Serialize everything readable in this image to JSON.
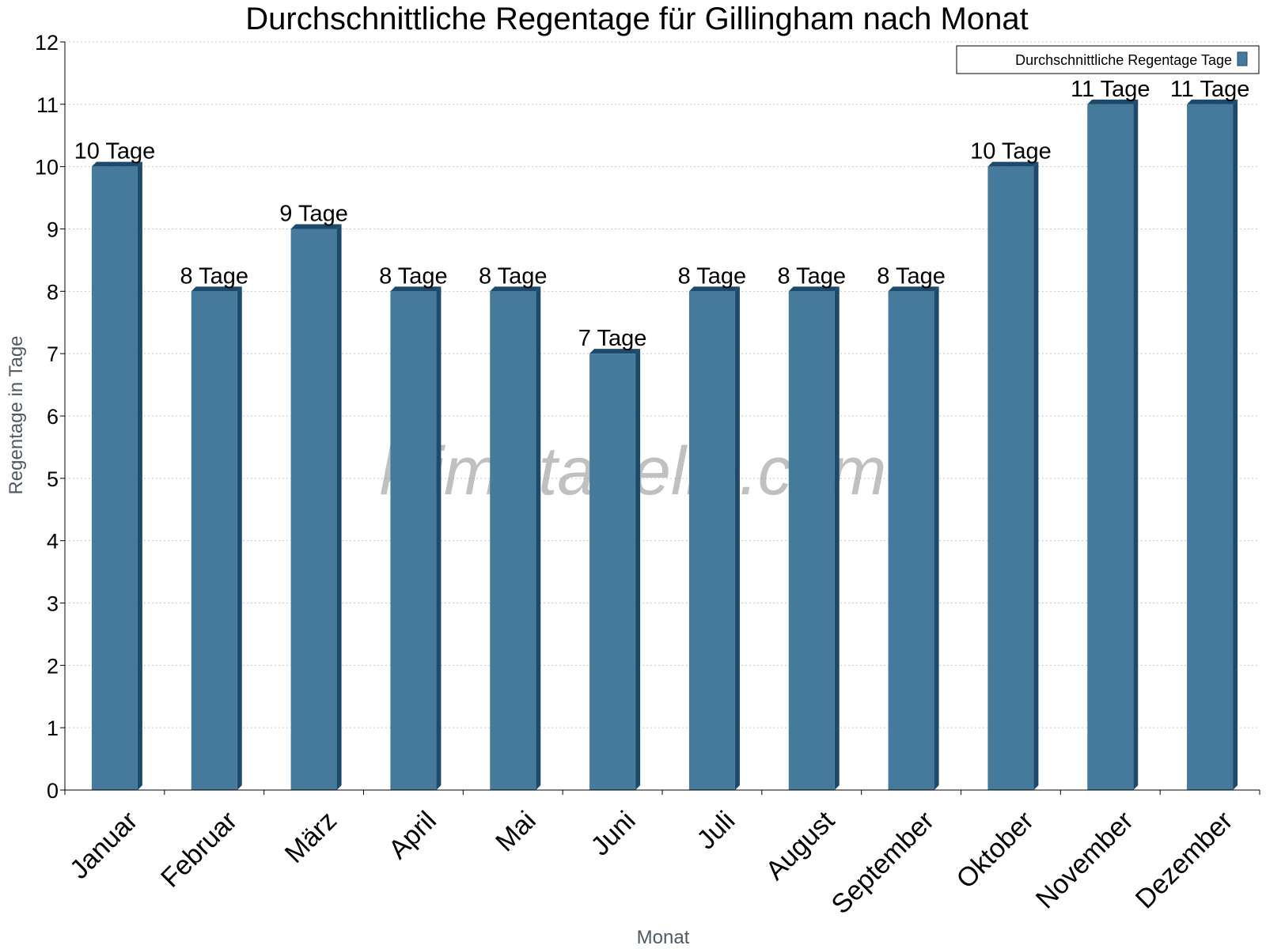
{
  "chart_data": {
    "type": "bar",
    "title": "Durchschnittliche Regentage für Gillingham nach Monat",
    "xlabel": "Monat",
    "ylabel": "Regentage in Tage",
    "ylim": [
      0,
      12
    ],
    "yticks": [
      0,
      1,
      2,
      3,
      4,
      5,
      6,
      7,
      8,
      9,
      10,
      11,
      12
    ],
    "grid": true,
    "legend_position": "top-right",
    "categories": [
      "Januar",
      "Februar",
      "März",
      "April",
      "Mai",
      "Juni",
      "Juli",
      "August",
      "September",
      "Oktober",
      "November",
      "Dezember"
    ],
    "series": [
      {
        "name": "Durchschnittliche Regentage Tage",
        "values": [
          10,
          8,
          9,
          8,
          8,
          7,
          8,
          8,
          8,
          10,
          11,
          11
        ],
        "data_labels": [
          "10 Tage",
          "8 Tage",
          "9 Tage",
          "8 Tage",
          "8 Tage",
          "7 Tage",
          "8 Tage",
          "8 Tage",
          "8 Tage",
          "10 Tage",
          "11 Tage",
          "11 Tage"
        ],
        "color": "#457a9c",
        "side_color": "#1d4a6a"
      }
    ],
    "watermark": "klimatabelle.com"
  }
}
